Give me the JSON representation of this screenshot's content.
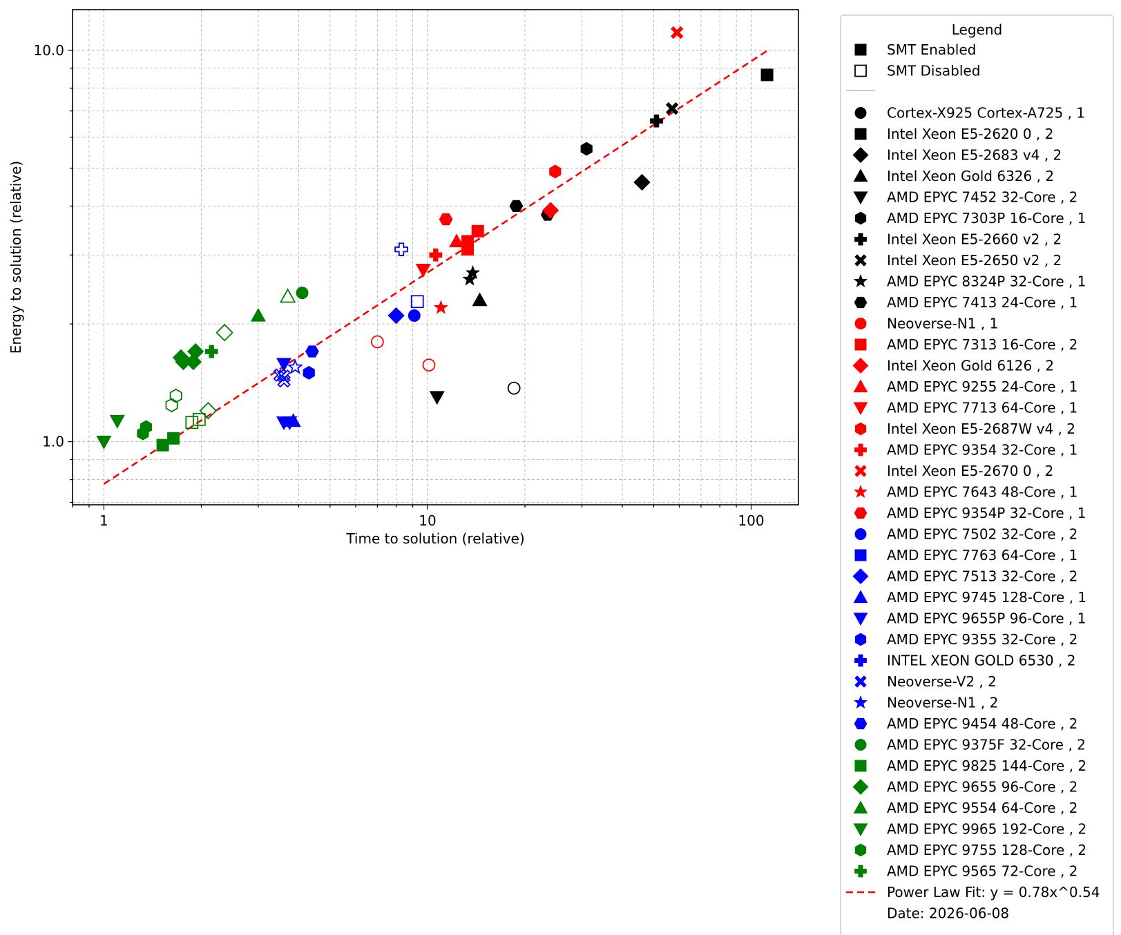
{
  "chart_data": {
    "type": "scatter",
    "xlabel": "Time to solution (relative)",
    "ylabel": "Energy to solution (relative)",
    "xscale": "log",
    "yscale": "log",
    "xlim": [
      0.8,
      140
    ],
    "ylim": [
      0.69,
      12.7
    ],
    "xticks": [
      {
        "value": 1,
        "label": "1"
      },
      {
        "value": 10,
        "label": "10"
      },
      {
        "value": 100,
        "label": "100"
      }
    ],
    "yticks": [
      {
        "value": 1,
        "label": "1.0"
      },
      {
        "value": 10,
        "label": "10.0"
      }
    ],
    "grid": "major and minor, dashed",
    "legend": {
      "title": "Legend",
      "placement": "outside right",
      "smt_entries": [
        {
          "label": "SMT Enabled",
          "filled": true
        },
        {
          "label": "SMT Disabled",
          "filled": false
        }
      ],
      "fit_label": "Power Law Fit: y = 0.78x^0.54",
      "date_label": "Date: 2026-06-08"
    },
    "fit": {
      "a": 0.78,
      "b": 0.54,
      "x_range": [
        1,
        112
      ],
      "color": "#ff0000"
    },
    "colors": {
      "black": "#000000",
      "red": "#ff0000",
      "blue": "#0000ff",
      "green": "#008000"
    },
    "series": [
      {
        "name": "Cortex-X925 Cortex-A725 , 1",
        "color": "black",
        "marker": "circle",
        "points": [
          {
            "x": 18.5,
            "y": 1.37,
            "filled": false
          }
        ]
      },
      {
        "name": "Intel Xeon  E5-2620 0 , 2",
        "color": "black",
        "marker": "square",
        "points": [
          {
            "x": 112,
            "y": 8.65,
            "filled": true
          }
        ]
      },
      {
        "name": "Intel Xeon  E5-2683 v4 , 2",
        "color": "black",
        "marker": "diamond",
        "points": [
          {
            "x": 46,
            "y": 4.6,
            "filled": true
          }
        ]
      },
      {
        "name": "Intel Xeon Gold 6326 , 2",
        "color": "black",
        "marker": "triangle-up",
        "points": [
          {
            "x": 14.5,
            "y": 2.3,
            "filled": true
          }
        ]
      },
      {
        "name": "AMD EPYC 7452 32-Core , 2",
        "color": "black",
        "marker": "triangle-down",
        "points": [
          {
            "x": 10.7,
            "y": 1.3,
            "filled": true
          }
        ]
      },
      {
        "name": "AMD EPYC 7303P 16-Core , 1",
        "color": "black",
        "marker": "hexagon",
        "points": [
          {
            "x": 31,
            "y": 5.6,
            "filled": true
          }
        ]
      },
      {
        "name": "Intel Xeon  E5-2660 v2 , 2",
        "color": "black",
        "marker": "plus",
        "points": [
          {
            "x": 51,
            "y": 6.6,
            "filled": true
          }
        ]
      },
      {
        "name": "Intel Xeon  E5-2650 v2 , 2",
        "color": "black",
        "marker": "x",
        "points": [
          {
            "x": 57,
            "y": 7.1,
            "filled": true
          }
        ]
      },
      {
        "name": "AMD EPYC 8324P 32-Core , 1",
        "color": "black",
        "marker": "star",
        "points": [
          {
            "x": 13.5,
            "y": 2.6,
            "filled": true
          },
          {
            "x": 13.8,
            "y": 2.7,
            "filled": true
          }
        ]
      },
      {
        "name": "AMD EPYC 7413 24-Core , 1",
        "color": "black",
        "marker": "hexagon2",
        "points": [
          {
            "x": 18.8,
            "y": 4.0,
            "filled": true
          },
          {
            "x": 23.5,
            "y": 3.8,
            "filled": true
          }
        ]
      },
      {
        "name": "Neoverse-N1 , 1",
        "color": "red",
        "marker": "circle",
        "points": [
          {
            "x": 7.0,
            "y": 1.8,
            "filled": false
          },
          {
            "x": 10.1,
            "y": 1.57,
            "filled": false
          }
        ]
      },
      {
        "name": "AMD EPYC 7313 16-Core , 2",
        "color": "red",
        "marker": "square",
        "points": [
          {
            "x": 13.3,
            "y": 3.1,
            "filled": true
          },
          {
            "x": 13.3,
            "y": 3.25,
            "filled": true
          },
          {
            "x": 14.3,
            "y": 3.45,
            "filled": true
          }
        ]
      },
      {
        "name": "Intel Xeon Gold 6126 , 2",
        "color": "red",
        "marker": "diamond",
        "points": [
          {
            "x": 24,
            "y": 3.9,
            "filled": true
          }
        ]
      },
      {
        "name": "AMD EPYC 9255 24-Core , 1",
        "color": "red",
        "marker": "triangle-up",
        "points": [
          {
            "x": 12.3,
            "y": 3.25,
            "filled": true
          }
        ]
      },
      {
        "name": "AMD EPYC 7713 64-Core , 1",
        "color": "red",
        "marker": "triangle-down",
        "points": [
          {
            "x": 9.7,
            "y": 2.75,
            "filled": true
          }
        ]
      },
      {
        "name": "Intel Xeon  E5-2687W v4 , 2",
        "color": "red",
        "marker": "hexagon",
        "points": [
          {
            "x": 24.8,
            "y": 4.9,
            "filled": true
          }
        ]
      },
      {
        "name": "AMD EPYC 9354 32-Core , 1",
        "color": "red",
        "marker": "plus",
        "points": [
          {
            "x": 10.6,
            "y": 3.0,
            "filled": true
          }
        ]
      },
      {
        "name": "Intel Xeon  E5-2670 0 , 2",
        "color": "red",
        "marker": "x",
        "points": [
          {
            "x": 59,
            "y": 11.1,
            "filled": true
          }
        ]
      },
      {
        "name": "AMD EPYC 7643 48-Core , 1",
        "color": "red",
        "marker": "star",
        "points": [
          {
            "x": 11.0,
            "y": 2.2,
            "filled": true
          }
        ]
      },
      {
        "name": "AMD EPYC 9354P 32-Core , 1",
        "color": "red",
        "marker": "hexagon2",
        "points": [
          {
            "x": 11.4,
            "y": 3.7,
            "filled": true
          }
        ]
      },
      {
        "name": "AMD EPYC 7502 32-Core , 2",
        "color": "blue",
        "marker": "circle",
        "points": [
          {
            "x": 9.1,
            "y": 2.1,
            "filled": true
          }
        ]
      },
      {
        "name": "AMD EPYC 7763 64-Core , 1",
        "color": "blue",
        "marker": "square",
        "points": [
          {
            "x": 9.3,
            "y": 2.28,
            "filled": false
          }
        ]
      },
      {
        "name": "AMD EPYC 7513 32-Core , 2",
        "color": "blue",
        "marker": "diamond",
        "points": [
          {
            "x": 8.0,
            "y": 2.1,
            "filled": true
          }
        ]
      },
      {
        "name": "AMD EPYC 9745 128-Core , 1",
        "color": "blue",
        "marker": "triangle-up",
        "points": [
          {
            "x": 3.85,
            "y": 1.13,
            "filled": true
          }
        ]
      },
      {
        "name": "AMD EPYC 9655P 96-Core , 1",
        "color": "blue",
        "marker": "triangle-down",
        "points": [
          {
            "x": 3.6,
            "y": 1.58,
            "filled": true
          },
          {
            "x": 3.6,
            "y": 1.12,
            "filled": true
          },
          {
            "x": 3.75,
            "y": 1.12,
            "filled": true
          }
        ]
      },
      {
        "name": "AMD EPYC 9355 32-Core , 2",
        "color": "blue",
        "marker": "hexagon",
        "points": [
          {
            "x": 4.3,
            "y": 1.5,
            "filled": true
          }
        ]
      },
      {
        "name": "INTEL XEON GOLD 6530 , 2",
        "color": "blue",
        "marker": "plus",
        "points": [
          {
            "x": 8.3,
            "y": 3.1,
            "filled": false
          }
        ]
      },
      {
        "name": "Neoverse-V2 , 2",
        "color": "blue",
        "marker": "x",
        "points": [
          {
            "x": 3.6,
            "y": 1.43,
            "filled": false
          },
          {
            "x": 3.6,
            "y": 1.47,
            "filled": false
          },
          {
            "x": 3.5,
            "y": 1.48,
            "filled": false
          }
        ]
      },
      {
        "name": "Neoverse-N1 , 2",
        "color": "blue",
        "marker": "star",
        "points": [
          {
            "x": 3.9,
            "y": 1.55,
            "filled": false
          }
        ]
      },
      {
        "name": "AMD EPYC 9454 48-Core , 2",
        "color": "blue",
        "marker": "hexagon2",
        "points": [
          {
            "x": 4.4,
            "y": 1.7,
            "filled": true
          }
        ]
      },
      {
        "name": "AMD EPYC 9375F 32-Core , 2",
        "color": "green",
        "marker": "circle",
        "points": [
          {
            "x": 4.1,
            "y": 2.4,
            "filled": true
          }
        ]
      },
      {
        "name": "AMD EPYC 9825 144-Core , 2",
        "color": "green",
        "marker": "square",
        "points": [
          {
            "x": 1.52,
            "y": 0.98,
            "filled": true
          },
          {
            "x": 1.64,
            "y": 1.02,
            "filled": true
          },
          {
            "x": 1.87,
            "y": 1.12,
            "filled": false
          },
          {
            "x": 1.97,
            "y": 1.14,
            "filled": false
          }
        ]
      },
      {
        "name": "AMD EPYC 9655 96-Core , 2",
        "color": "green",
        "marker": "diamond",
        "points": [
          {
            "x": 1.73,
            "y": 1.64,
            "filled": true
          },
          {
            "x": 1.76,
            "y": 1.6,
            "filled": true
          },
          {
            "x": 1.89,
            "y": 1.6,
            "filled": true
          },
          {
            "x": 1.92,
            "y": 1.7,
            "filled": true
          },
          {
            "x": 2.36,
            "y": 1.9,
            "filled": false
          },
          {
            "x": 2.1,
            "y": 1.2,
            "filled": false
          }
        ]
      },
      {
        "name": "AMD EPYC 9554 64-Core , 2",
        "color": "green",
        "marker": "triangle-up",
        "points": [
          {
            "x": 3.0,
            "y": 2.1,
            "filled": true
          },
          {
            "x": 3.7,
            "y": 2.35,
            "filled": false
          }
        ]
      },
      {
        "name": "AMD EPYC 9965 192-Core , 2",
        "color": "green",
        "marker": "triangle-down",
        "points": [
          {
            "x": 1.0,
            "y": 1.0,
            "filled": true
          },
          {
            "x": 1.1,
            "y": 1.13,
            "filled": true
          }
        ]
      },
      {
        "name": "AMD EPYC 9755 128-Core , 2",
        "color": "green",
        "marker": "hexagon",
        "points": [
          {
            "x": 1.32,
            "y": 1.05,
            "filled": true
          },
          {
            "x": 1.35,
            "y": 1.09,
            "filled": true
          },
          {
            "x": 1.62,
            "y": 1.24,
            "filled": false
          },
          {
            "x": 1.67,
            "y": 1.31,
            "filled": false
          }
        ]
      },
      {
        "name": "AMD EPYC 9565 72-Core , 2",
        "color": "green",
        "marker": "plus",
        "points": [
          {
            "x": 2.15,
            "y": 1.7,
            "filled": true
          }
        ]
      }
    ]
  }
}
